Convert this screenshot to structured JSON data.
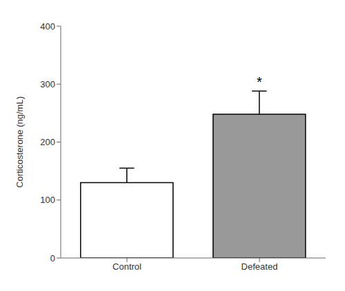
{
  "chart_data": {
    "type": "bar",
    "categories": [
      "Control",
      "Defeated"
    ],
    "values": [
      130,
      248
    ],
    "sem": [
      25,
      40
    ],
    "colors": [
      "#ffffff",
      "#999999"
    ],
    "ylabel": "Corticosterone (ng/mL)",
    "ylim": [
      0,
      400
    ],
    "yticks": [
      0,
      100,
      200,
      300,
      400
    ],
    "annotations": [
      {
        "text": "*",
        "category": "Defeated"
      }
    ]
  }
}
